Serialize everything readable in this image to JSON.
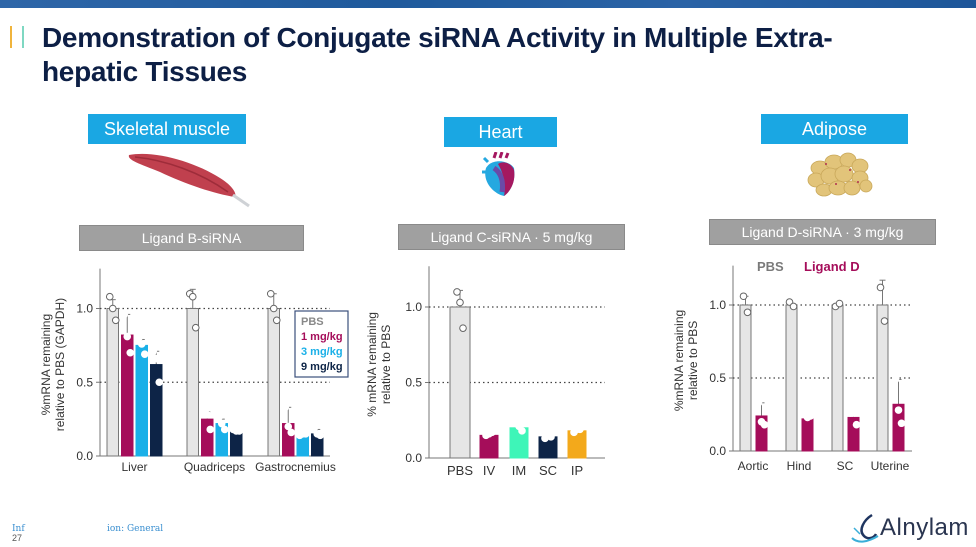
{
  "header": {
    "title": "Demonstration of Conjugate siRNA Activity in Multiple Extra-hepatic Tissues",
    "title_line1": "Demonstration of Conjugate siRNA Activity in Multiple Extra-",
    "title_line2": "hepatic Tissues",
    "accent_colors": [
      "#f0b43c",
      "#7fd8c2",
      "#1a63a8"
    ]
  },
  "panels": [
    {
      "tissue": "Skeletal muscle",
      "ligand": "Ligand B-siRNA",
      "icon": "muscle-icon"
    },
    {
      "tissue": "Heart",
      "ligand": "Ligand C-siRNA · 5 mg/kg",
      "icon": "heart-icon"
    },
    {
      "tissue": "Adipose",
      "ligand": "Ligand D-siRNA · 3 mg/kg",
      "icon": "adipose-icon"
    }
  ],
  "footer": {
    "classification_left": "Inf",
    "classification_right": "ion: General",
    "page_number": "27",
    "logo_text": "Alnylam"
  },
  "chart_data": [
    {
      "type": "bar",
      "title": "Ligand B-siRNA",
      "ylabel": "%mRNA remaining relative to PBS (GAPDH)",
      "ylabel_line1": "%mRNA remaining",
      "ylabel_line2": "relative to PBS (GAPDH)",
      "ylim": [
        0,
        1.25
      ],
      "yticks": [
        "0.0",
        "0.5",
        "1.0"
      ],
      "ytick_values": [
        0,
        0.5,
        1.0
      ],
      "gridlines_dotted": [
        0.5,
        1.0
      ],
      "categories": [
        "Liver",
        "Quadriceps",
        "Gastrocnemius"
      ],
      "legend_placement": "right",
      "series": [
        {
          "name": "PBS",
          "color": "#e6e6e6",
          "values": [
            1.0,
            1.0,
            1.0
          ],
          "errors": [
            0.06,
            0.13,
            0.1
          ],
          "points": [
            [
              1.08,
              1.0,
              0.92
            ],
            [
              1.1,
              1.08,
              0.87
            ],
            [
              1.1,
              1.0,
              0.92
            ]
          ]
        },
        {
          "name": "1 mg/kg",
          "color": "#a50d5a",
          "values": [
            0.82,
            0.25,
            0.22
          ],
          "errors": [
            0.14,
            0.05,
            0.11
          ],
          "points": [
            [
              0.96,
              0.81,
              0.7
            ],
            [
              0.29,
              0.28,
              0.18
            ],
            [
              0.33,
              0.2,
              0.16
            ]
          ]
        },
        {
          "name": "3 mg/kg",
          "color": "#1ab0e8",
          "values": [
            0.75,
            0.22,
            0.14
          ],
          "errors": [
            0.04,
            0.03,
            0.01
          ],
          "points": [
            [
              0.8,
              0.76,
              0.69
            ],
            [
              0.26,
              0.22,
              0.18
            ],
            [
              0.14,
              0.15,
              0.15
            ]
          ]
        },
        {
          "name": "9 mg/kg",
          "color": "#0d2447",
          "values": [
            0.62,
            0.17,
            0.15
          ],
          "errors": [
            0.09,
            0.01,
            0.03
          ],
          "points": [
            [
              0.71,
              0.66,
              0.5
            ],
            [
              0.18,
              0.17,
              0.17
            ],
            [
              0.19,
              0.15,
              0.14
            ]
          ]
        }
      ]
    },
    {
      "type": "bar",
      "title": "Ligand C-siRNA · 5 mg/kg",
      "ylabel": "% mRNA remaining relative to PBS",
      "ylabel_line1": "% mRNA remaining",
      "ylabel_line2": "relative to PBS",
      "ylim": [
        0,
        1.25
      ],
      "yticks": [
        "0.0",
        "0.5",
        "1.0"
      ],
      "ytick_values": [
        0,
        0.5,
        1.0
      ],
      "gridlines_dotted": [
        0.5,
        1.0
      ],
      "categories": [
        "PBS",
        "IV",
        "IM",
        "SC",
        "IP"
      ],
      "colors": [
        "#e6e6e6",
        "#a50d5a",
        "#3ef5b8",
        "#0d2447",
        "#f3a91b"
      ],
      "values": [
        1.0,
        0.15,
        0.2,
        0.14,
        0.18
      ],
      "errors": [
        0.11,
        0.01,
        0.02,
        0.01,
        0.01
      ],
      "points": [
        [
          1.1,
          1.03,
          0.86
        ],
        [
          0.15,
          0.16,
          0.17
        ],
        [
          0.24,
          0.21,
          0.18
        ],
        [
          0.13,
          0.15,
          0.14
        ],
        [
          0.17,
          0.19,
          0.19
        ]
      ]
    },
    {
      "type": "bar",
      "title": "Ligand D-siRNA · 3 mg/kg",
      "ylabel": "%mRNA remaining relative to PBS",
      "ylabel_line1": "%mRNA remaining",
      "ylabel_line2": "relative to PBS",
      "ylim": [
        0,
        1.25
      ],
      "yticks": [
        "0.0",
        "0.5",
        "1.0"
      ],
      "ytick_values": [
        0,
        0.5,
        1.0
      ],
      "gridlines_dotted": [
        0.5,
        1.0
      ],
      "categories": [
        "Aortic",
        "Hind",
        "SC",
        "Uterine"
      ],
      "legend_placement": "top",
      "series": [
        {
          "name": "PBS",
          "color": "#e6e6e6",
          "legend_color": "#7a7a7a",
          "values": [
            1.0,
            1.0,
            1.0,
            1.0
          ],
          "errors": [
            0.06,
            0.01,
            0.01,
            0.17
          ],
          "points": [
            [
              1.06,
              0.95
            ],
            [
              1.02,
              0.99
            ],
            [
              0.99,
              1.01
            ],
            [
              1.12,
              0.89
            ]
          ]
        },
        {
          "name": "Ligand D",
          "color": "#a50d5a",
          "legend_color": "#a50d5a",
          "values": [
            0.24,
            0.22,
            0.23,
            0.32
          ],
          "errors": [
            0.09,
            0.02,
            0.03,
            0.17
          ],
          "points": [
            [
              0.33,
              0.2,
              0.18
            ],
            [
              0.25,
              0.23,
              0.24
            ],
            [
              0.26,
              0.26,
              0.18
            ],
            [
              0.49,
              0.28,
              0.19
            ]
          ]
        }
      ]
    }
  ]
}
